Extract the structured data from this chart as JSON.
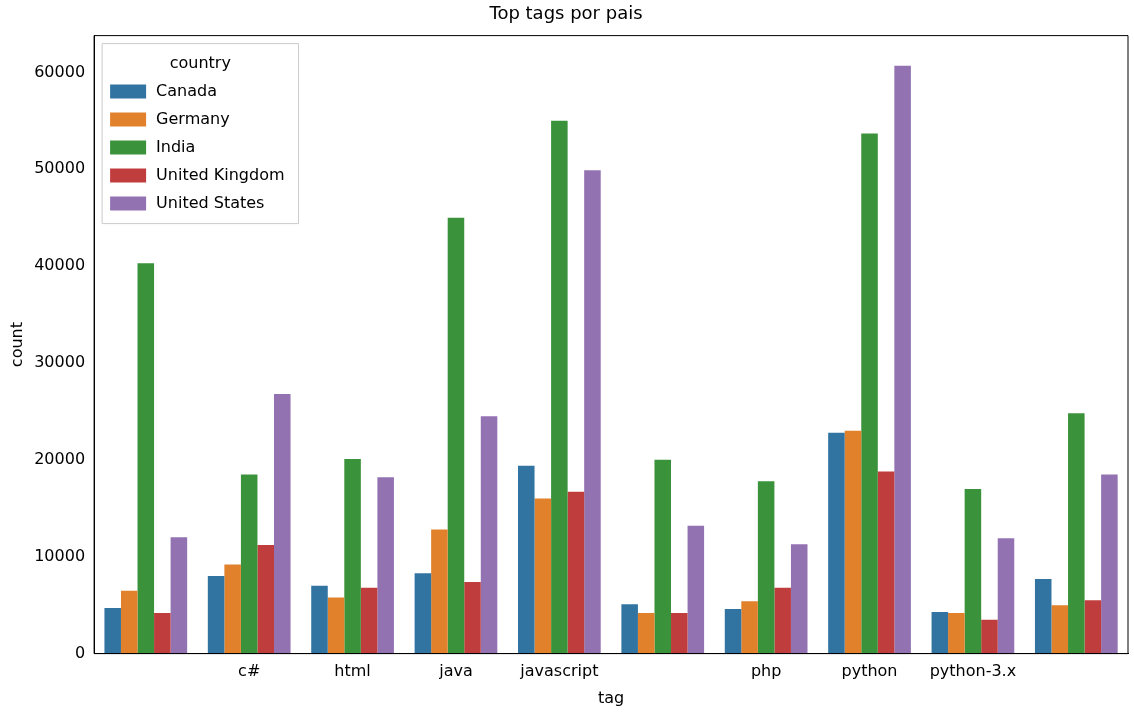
{
  "chart_data": {
    "type": "bar",
    "title": "Top tags por pais",
    "xlabel": "tag",
    "ylabel": "count",
    "legend_title": "country",
    "legend": "top left",
    "grid": false,
    "categories": [
      null,
      "c#",
      "html",
      "java",
      "javascript",
      null,
      "php",
      "python",
      "python-3.x",
      null
    ],
    "ylim": [
      0,
      63800
    ],
    "yticks": [
      0,
      10000,
      20000,
      30000,
      40000,
      50000,
      60000
    ],
    "series": [
      {
        "name": "Canada",
        "color": "#3274a1",
        "values": [
          4700,
          8000,
          7000,
          8300,
          19400,
          5100,
          4600,
          22800,
          4300,
          7700
        ]
      },
      {
        "name": "Germany",
        "color": "#e1812c",
        "values": [
          6500,
          9200,
          5800,
          12800,
          16000,
          4200,
          5400,
          23000,
          4200,
          5000
        ]
      },
      {
        "name": "India",
        "color": "#3a923a",
        "values": [
          40300,
          18500,
          20100,
          45000,
          55000,
          20000,
          17800,
          53700,
          17000,
          24800
        ]
      },
      {
        "name": "United Kingdom",
        "color": "#c03d3e",
        "values": [
          4200,
          11200,
          6800,
          7400,
          16700,
          4200,
          6800,
          18800,
          3500,
          5500
        ]
      },
      {
        "name": "United States",
        "color": "#9372b2",
        "values": [
          12000,
          26800,
          18200,
          24500,
          49900,
          13200,
          11300,
          60700,
          11900,
          18500
        ]
      }
    ]
  }
}
